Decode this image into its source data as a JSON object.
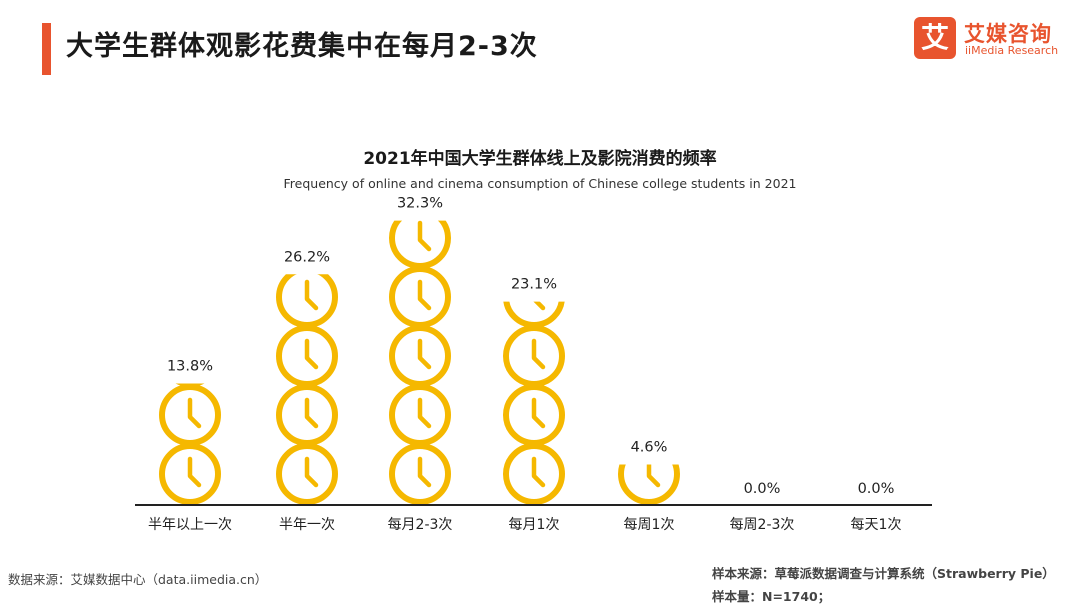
{
  "header": {
    "title": "大学生群体观影花费集中在每月2-3次",
    "accent_color": "#e8542e"
  },
  "logo": {
    "mark": "艾",
    "name_cn": "艾媒咨询",
    "name_en": "iiMedia Research"
  },
  "chart_data": {
    "type": "bar",
    "title": "2021年中国大学生群体线上及影院消费的频率",
    "subtitle": "Frequency of online and cinema consumption of Chinese college students in 2021",
    "categories": [
      "半年以上一次",
      "半年一次",
      "每月2-3次",
      "每月1次",
      "每周1次",
      "每周2-3次",
      "每天1次"
    ],
    "values": [
      13.8,
      26.2,
      32.3,
      23.1,
      4.6,
      0.0,
      0.0
    ],
    "value_labels": [
      "13.8%",
      "26.2%",
      "32.3%",
      "23.1%",
      "4.6%",
      "0.0%",
      "0.0%"
    ],
    "unit": "%",
    "icon_value": 6.7,
    "icon": "clock-icon",
    "icon_color": "#f5b800",
    "xlabel": "",
    "ylabel": ""
  },
  "footer": {
    "source": "数据来源：艾媒数据中心（data.iimedia.cn）",
    "sample_source": "样本来源：草莓派数据调查与计算系统（Strawberry Pie）",
    "sample_size": "样本量：N=1740；"
  }
}
